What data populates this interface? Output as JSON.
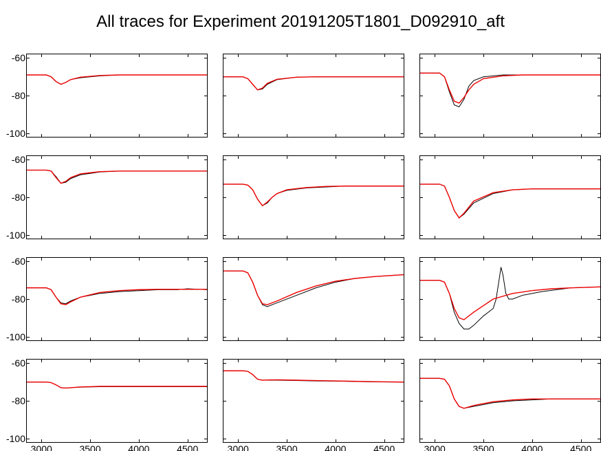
{
  "title": "All traces for Experiment 20191205T1801_D092910_aft",
  "title_fontsize": 24,
  "background_color": "#ffffff",
  "axis_font": {
    "tick_fontsize": 14,
    "color": "#000000"
  },
  "layout": {
    "rows": 4,
    "cols": 3,
    "col_gap": 14,
    "row_gap": 14,
    "show_yticks_on_col": 0,
    "show_xticks_on_row": 3
  },
  "common_axes": {
    "xlim": [
      2850,
      4700
    ],
    "ylim": [
      -102,
      -58
    ],
    "xticks": [
      3000,
      3500,
      4000,
      4500
    ],
    "yticks": [
      -60,
      -80,
      -100
    ],
    "line_data_color": "#000000",
    "line_data_width": 1.0,
    "line_fit_color": "#ee0000",
    "line_fit_width": 1.4,
    "border_color": "#000000"
  },
  "panels": [
    {
      "row": 0,
      "col": 0,
      "type": "line",
      "data": {
        "x": [
          2850,
          3000,
          3050,
          3100,
          3150,
          3200,
          3250,
          3300,
          3400,
          3600,
          3800,
          4000,
          4200,
          4400,
          4700
        ],
        "y": [
          -69,
          -69,
          -69,
          -70,
          -72.5,
          -74,
          -73,
          -71.5,
          -70.5,
          -69.5,
          -69,
          -69,
          -69,
          -69,
          -69
        ]
      },
      "fit": {
        "x": [
          2850,
          3000,
          3050,
          3100,
          3150,
          3200,
          3250,
          3300,
          3400,
          3600,
          3800,
          4000,
          4200,
          4400,
          4700
        ],
        "y": [
          -69,
          -69,
          -69,
          -70,
          -72.5,
          -74,
          -73,
          -71.5,
          -70.2,
          -69.3,
          -69,
          -69,
          -69,
          -69,
          -69
        ]
      }
    },
    {
      "row": 0,
      "col": 1,
      "type": "line",
      "data": {
        "x": [
          2850,
          3000,
          3050,
          3100,
          3150,
          3200,
          3250,
          3300,
          3400,
          3600,
          3800,
          4000,
          4200,
          4400,
          4700
        ],
        "y": [
          -70,
          -70,
          -70,
          -71,
          -74,
          -77,
          -76.5,
          -74,
          -71.5,
          -70.2,
          -70,
          -70,
          -70,
          -70,
          -70
        ]
      },
      "fit": {
        "x": [
          2850,
          3000,
          3050,
          3100,
          3150,
          3200,
          3250,
          3300,
          3400,
          3600,
          3800,
          4000,
          4200,
          4400,
          4700
        ],
        "y": [
          -70,
          -70,
          -70,
          -71,
          -74,
          -77,
          -76,
          -73.5,
          -71.3,
          -70.2,
          -70,
          -70,
          -70,
          -70,
          -70
        ]
      }
    },
    {
      "row": 0,
      "col": 2,
      "type": "line",
      "data": {
        "x": [
          2850,
          3000,
          3050,
          3100,
          3150,
          3200,
          3250,
          3300,
          3350,
          3400,
          3500,
          3700,
          3900,
          4100,
          4400,
          4700
        ],
        "y": [
          -68,
          -68,
          -68,
          -70,
          -78,
          -85,
          -86,
          -82,
          -75,
          -72,
          -70,
          -69,
          -69,
          -69,
          -69,
          -69
        ]
      },
      "fit": {
        "x": [
          2850,
          3000,
          3050,
          3100,
          3150,
          3200,
          3250,
          3300,
          3350,
          3400,
          3500,
          3700,
          3900,
          4100,
          4400,
          4700
        ],
        "y": [
          -68,
          -68,
          -68,
          -70,
          -77,
          -83,
          -84,
          -81,
          -77,
          -74,
          -71,
          -69.5,
          -69,
          -69,
          -69,
          -69
        ]
      }
    },
    {
      "row": 1,
      "col": 0,
      "type": "line",
      "data": {
        "x": [
          2850,
          3000,
          3050,
          3100,
          3150,
          3200,
          3250,
          3300,
          3400,
          3600,
          3800,
          4000,
          4200,
          4400,
          4700
        ],
        "y": [
          -65.5,
          -65.5,
          -65.5,
          -66,
          -69,
          -72.5,
          -72,
          -70,
          -68,
          -66.5,
          -66,
          -66,
          -66,
          -66,
          -66
        ]
      },
      "fit": {
        "x": [
          2850,
          3000,
          3050,
          3100,
          3150,
          3200,
          3250,
          3300,
          3400,
          3600,
          3800,
          4000,
          4200,
          4400,
          4700
        ],
        "y": [
          -65.5,
          -65.5,
          -65.5,
          -66,
          -69.5,
          -72.5,
          -71.5,
          -69.5,
          -67.5,
          -66.3,
          -66,
          -66,
          -66,
          -66,
          -66
        ]
      }
    },
    {
      "row": 1,
      "col": 1,
      "type": "line",
      "data": {
        "x": [
          2850,
          3000,
          3050,
          3100,
          3150,
          3200,
          3250,
          3300,
          3350,
          3400,
          3500,
          3700,
          3900,
          4100,
          4400,
          4700
        ],
        "y": [
          -73,
          -73,
          -73,
          -73.5,
          -76,
          -81,
          -84.5,
          -83,
          -80,
          -78,
          -76.3,
          -75,
          -74.5,
          -74,
          -74,
          -74
        ]
      },
      "fit": {
        "x": [
          2850,
          3000,
          3050,
          3100,
          3150,
          3200,
          3250,
          3300,
          3350,
          3400,
          3500,
          3700,
          3900,
          4100,
          4400,
          4700
        ],
        "y": [
          -73,
          -73,
          -73,
          -73.5,
          -76,
          -81,
          -84.5,
          -82.5,
          -80,
          -78,
          -76,
          -74.8,
          -74.2,
          -74,
          -74,
          -74
        ]
      }
    },
    {
      "row": 1,
      "col": 2,
      "type": "line",
      "data": {
        "x": [
          2850,
          3000,
          3050,
          3100,
          3150,
          3200,
          3250,
          3300,
          3400,
          3600,
          3800,
          4000,
          4200,
          4400,
          4700
        ],
        "y": [
          -73,
          -73,
          -73,
          -74,
          -80,
          -87,
          -91,
          -89,
          -83,
          -78,
          -76,
          -75.5,
          -75.5,
          -75.5,
          -75.5
        ]
      },
      "fit": {
        "x": [
          2850,
          3000,
          3050,
          3100,
          3150,
          3200,
          3250,
          3300,
          3400,
          3600,
          3800,
          4000,
          4200,
          4400,
          4700
        ],
        "y": [
          -73,
          -73,
          -73,
          -74,
          -80,
          -87,
          -91,
          -88.5,
          -82,
          -77.5,
          -76,
          -75.5,
          -75.5,
          -75.5,
          -75.5
        ]
      }
    },
    {
      "row": 2,
      "col": 0,
      "type": "line",
      "data": {
        "x": [
          2850,
          3000,
          3050,
          3100,
          3150,
          3200,
          3250,
          3300,
          3400,
          3600,
          3800,
          4000,
          4200,
          4400,
          4500,
          4700
        ],
        "y": [
          -74,
          -74,
          -74,
          -75,
          -79,
          -82,
          -82.5,
          -81,
          -79,
          -77,
          -76,
          -75.5,
          -75,
          -75,
          -74.5,
          -75
        ]
      },
      "fit": {
        "x": [
          2850,
          3000,
          3050,
          3100,
          3150,
          3200,
          3250,
          3300,
          3400,
          3600,
          3800,
          4000,
          4200,
          4400,
          4700
        ],
        "y": [
          -74,
          -74,
          -74,
          -75,
          -79,
          -82.5,
          -83,
          -81.5,
          -79,
          -76.5,
          -75.5,
          -75,
          -74.8,
          -74.8,
          -74.8
        ]
      }
    },
    {
      "row": 2,
      "col": 1,
      "type": "line",
      "data": {
        "x": [
          2850,
          3000,
          3050,
          3100,
          3150,
          3200,
          3250,
          3300,
          3400,
          3600,
          3800,
          4000,
          4200,
          4400,
          4700
        ],
        "y": [
          -65,
          -65,
          -65,
          -66,
          -71,
          -78,
          -83,
          -84,
          -82,
          -78,
          -74,
          -71,
          -69,
          -68,
          -67
        ]
      },
      "fit": {
        "x": [
          2850,
          3000,
          3050,
          3100,
          3150,
          3200,
          3250,
          3300,
          3400,
          3600,
          3800,
          4000,
          4200,
          4400,
          4700
        ],
        "y": [
          -65,
          -65,
          -65,
          -66,
          -71,
          -78,
          -82.5,
          -83,
          -81,
          -76.5,
          -73,
          -70.5,
          -69,
          -68,
          -67
        ]
      }
    },
    {
      "row": 2,
      "col": 2,
      "type": "line",
      "data": {
        "x": [
          2850,
          3000,
          3050,
          3100,
          3150,
          3200,
          3250,
          3300,
          3350,
          3400,
          3500,
          3550,
          3600,
          3630,
          3660,
          3680,
          3700,
          3730,
          3760,
          3800,
          3900,
          4100,
          4400,
          4700
        ],
        "y": [
          -70,
          -70,
          -70,
          -71,
          -77,
          -87,
          -93,
          -96,
          -96,
          -94,
          -89,
          -87,
          -85,
          -80,
          -70,
          -63,
          -67,
          -77,
          -80,
          -80,
          -78,
          -76,
          -74,
          -73.5
        ]
      },
      "fit": {
        "x": [
          2850,
          3000,
          3050,
          3100,
          3150,
          3200,
          3250,
          3300,
          3400,
          3600,
          3800,
          4000,
          4200,
          4400,
          4700
        ],
        "y": [
          -70,
          -70,
          -70,
          -71,
          -77,
          -85,
          -90,
          -91,
          -87,
          -80,
          -77,
          -75.5,
          -74.5,
          -74,
          -73.5
        ]
      }
    },
    {
      "row": 3,
      "col": 0,
      "type": "line",
      "data": {
        "x": [
          2850,
          3000,
          3050,
          3100,
          3150,
          3200,
          3250,
          3300,
          3400,
          3600,
          3800,
          4000,
          4200,
          4400,
          4700
        ],
        "y": [
          -70,
          -70,
          -70,
          -70.3,
          -71.5,
          -73,
          -73.2,
          -73,
          -72.7,
          -72.5,
          -72.5,
          -72.5,
          -72.5,
          -72.5,
          -72.5
        ]
      },
      "fit": {
        "x": [
          2850,
          3000,
          3050,
          3100,
          3150,
          3200,
          3250,
          3300,
          3400,
          3600,
          3800,
          4000,
          4200,
          4400,
          4700
        ],
        "y": [
          -70,
          -70,
          -70,
          -70.3,
          -71.5,
          -73,
          -73.2,
          -73,
          -72.6,
          -72.3,
          -72.3,
          -72.3,
          -72.3,
          -72.3,
          -72.3
        ]
      }
    },
    {
      "row": 3,
      "col": 1,
      "type": "line",
      "data": {
        "x": [
          2850,
          3000,
          3050,
          3100,
          3150,
          3200,
          3250,
          3300,
          3400,
          3600,
          3800,
          4000,
          4200,
          4400,
          4700
        ],
        "y": [
          -64,
          -64,
          -64,
          -64.3,
          -66,
          -68.5,
          -69,
          -69,
          -69,
          -69.2,
          -69.4,
          -69.5,
          -69.7,
          -69.9,
          -70
        ]
      },
      "fit": {
        "x": [
          2850,
          3000,
          3050,
          3100,
          3150,
          3200,
          3250,
          3300,
          3400,
          3600,
          3800,
          4000,
          4200,
          4400,
          4700
        ],
        "y": [
          -64,
          -64,
          -64,
          -64.3,
          -66,
          -68.5,
          -69,
          -68.9,
          -68.8,
          -69,
          -69.2,
          -69.4,
          -69.6,
          -69.8,
          -70
        ]
      }
    },
    {
      "row": 3,
      "col": 2,
      "type": "line",
      "data": {
        "x": [
          2850,
          3000,
          3050,
          3100,
          3150,
          3200,
          3250,
          3300,
          3400,
          3600,
          3800,
          4000,
          4200,
          4400,
          4700
        ],
        "y": [
          -68,
          -68,
          -68,
          -68.5,
          -72,
          -79,
          -83,
          -84,
          -83,
          -81,
          -80,
          -79.5,
          -79,
          -79,
          -79
        ]
      },
      "fit": {
        "x": [
          2850,
          3000,
          3050,
          3100,
          3150,
          3200,
          3250,
          3300,
          3400,
          3600,
          3800,
          4000,
          4200,
          4400,
          4700
        ],
        "y": [
          -68,
          -68,
          -68,
          -68.5,
          -72,
          -79,
          -83,
          -84,
          -82.5,
          -80.5,
          -79.5,
          -79,
          -79,
          -79,
          -79
        ]
      }
    }
  ]
}
